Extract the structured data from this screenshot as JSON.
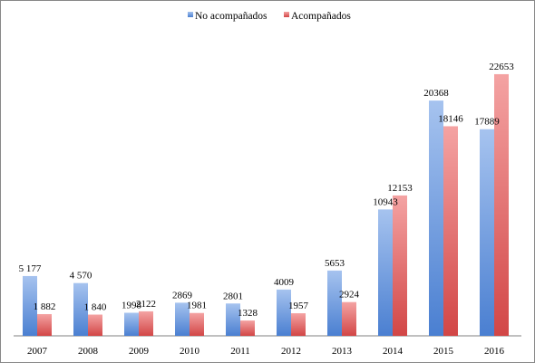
{
  "chart_data": {
    "type": "bar",
    "title": "",
    "xlabel": "",
    "ylabel": "",
    "categories": [
      "2007",
      "2008",
      "2009",
      "2010",
      "2011",
      "2012",
      "2013",
      "2014",
      "2015",
      "2016"
    ],
    "series": [
      {
        "name": "No acompañados",
        "values": [
          5177,
          4570,
          1998,
          2869,
          2801,
          4009,
          5653,
          10943,
          20368,
          17889
        ],
        "labels": [
          "5 177",
          "4 570",
          "1998",
          "2869",
          "2801",
          "4009",
          "5653",
          "10943",
          "20368",
          "17889"
        ],
        "color_top": "#a6c3ef",
        "color_bottom": "#4a7fd1"
      },
      {
        "name": "Acompañados",
        "values": [
          1882,
          1840,
          2122,
          1981,
          1328,
          1957,
          2924,
          12153,
          18146,
          22653
        ],
        "labels": [
          "1 882",
          "1 840",
          "2122",
          "1981",
          "1328",
          "1957",
          "2924",
          "12153",
          "18146",
          "22653"
        ],
        "color_top": "#f4a3a3",
        "color_bottom": "#d24646"
      }
    ],
    "ylim": [
      0,
      25000
    ],
    "grid": false,
    "legend_position": "top-center"
  }
}
